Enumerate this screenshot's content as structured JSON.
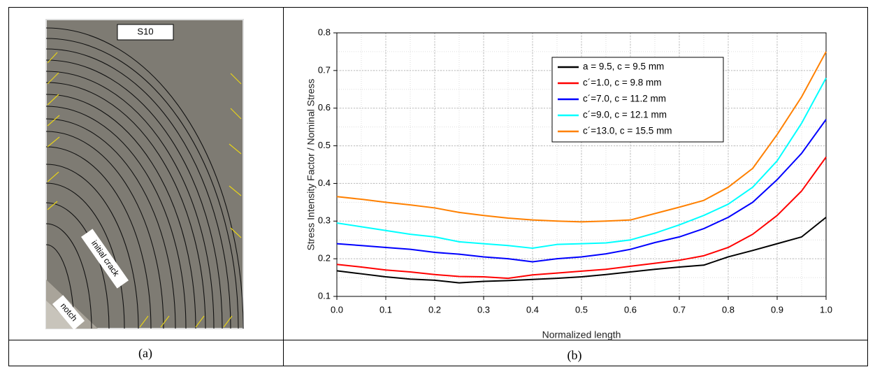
{
  "panel_a": {
    "specimen": "S10",
    "crack_label": "initial crack",
    "notch_label": "notch",
    "caption": "(a)"
  },
  "panel_b": {
    "caption": "(b)"
  },
  "chart_data": {
    "type": "line",
    "xlabel": "Normalized length",
    "ylabel": "Stress Intensity Factor / Nominal Stress",
    "x": [
      0,
      0.05,
      0.1,
      0.15,
      0.2,
      0.25,
      0.3,
      0.35,
      0.4,
      0.45,
      0.5,
      0.55,
      0.6,
      0.65,
      0.7,
      0.75,
      0.8,
      0.85,
      0.9,
      0.95,
      1.0
    ],
    "series": [
      {
        "name": "a = 9.5, c = 9.5 mm",
        "color": "#000000",
        "values": [
          0.168,
          0.16,
          0.152,
          0.146,
          0.143,
          0.136,
          0.14,
          0.142,
          0.145,
          0.148,
          0.152,
          0.158,
          0.165,
          0.172,
          0.178,
          0.183,
          0.205,
          0.222,
          0.24,
          0.258,
          0.31
        ]
      },
      {
        "name": "c´=1.0, c = 9.8 mm",
        "color": "#ff0000",
        "values": [
          0.185,
          0.178,
          0.17,
          0.165,
          0.158,
          0.153,
          0.152,
          0.148,
          0.157,
          0.162,
          0.167,
          0.172,
          0.18,
          0.188,
          0.196,
          0.208,
          0.23,
          0.265,
          0.315,
          0.38,
          0.47
        ]
      },
      {
        "name": "c´=7.0, c = 11.2 mm",
        "color": "#0000ff",
        "values": [
          0.24,
          0.235,
          0.23,
          0.225,
          0.217,
          0.212,
          0.205,
          0.2,
          0.192,
          0.2,
          0.205,
          0.213,
          0.225,
          0.243,
          0.258,
          0.28,
          0.31,
          0.35,
          0.41,
          0.48,
          0.57
        ]
      },
      {
        "name": "c´=9.0, c = 12.1 mm",
        "color": "#00ffff",
        "values": [
          0.295,
          0.285,
          0.275,
          0.265,
          0.258,
          0.245,
          0.24,
          0.235,
          0.228,
          0.238,
          0.24,
          0.242,
          0.25,
          0.268,
          0.29,
          0.315,
          0.345,
          0.39,
          0.46,
          0.56,
          0.68
        ]
      },
      {
        "name": "c´=13.0, c = 15.5 mm",
        "color": "#ff8000",
        "values": [
          0.365,
          0.358,
          0.35,
          0.343,
          0.335,
          0.323,
          0.315,
          0.308,
          0.303,
          0.3,
          0.298,
          0.3,
          0.303,
          0.32,
          0.337,
          0.355,
          0.39,
          0.44,
          0.53,
          0.63,
          0.75
        ]
      }
    ],
    "xlim": [
      0,
      1.0
    ],
    "ylim": [
      0.1,
      0.8
    ],
    "xticks": [
      {
        "value": 0,
        "label": "0.0"
      },
      0.1,
      0.2,
      0.3,
      0.4,
      0.5,
      0.6,
      0.7,
      0.8,
      0.9,
      {
        "value": 1.0,
        "label": "1.0"
      }
    ],
    "yticks": [
      0.1,
      0.2,
      0.3,
      0.4,
      0.5,
      0.6,
      0.7,
      0.8
    ],
    "grid": true
  }
}
